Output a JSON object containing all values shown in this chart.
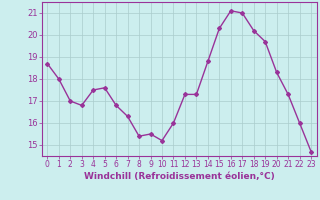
{
  "x": [
    0,
    1,
    2,
    3,
    4,
    5,
    6,
    7,
    8,
    9,
    10,
    11,
    12,
    13,
    14,
    15,
    16,
    17,
    18,
    19,
    20,
    21,
    22,
    23
  ],
  "y": [
    18.7,
    18.0,
    17.0,
    16.8,
    17.5,
    17.6,
    16.8,
    16.3,
    15.4,
    15.5,
    15.2,
    16.0,
    17.3,
    17.3,
    18.8,
    20.3,
    21.1,
    21.0,
    20.2,
    19.7,
    18.3,
    17.3,
    16.0,
    14.7
  ],
  "line_color": "#993399",
  "marker": "D",
  "marker_size": 2,
  "bg_color": "#cceeee",
  "grid_color": "#aacccc",
  "xlabel": "Windchill (Refroidissement éolien,°C)",
  "ylim": [
    14.5,
    21.5
  ],
  "yticks": [
    15,
    16,
    17,
    18,
    19,
    20,
    21
  ],
  "xticks": [
    0,
    1,
    2,
    3,
    4,
    5,
    6,
    7,
    8,
    9,
    10,
    11,
    12,
    13,
    14,
    15,
    16,
    17,
    18,
    19,
    20,
    21,
    22,
    23
  ],
  "axis_color": "#993399",
  "tick_label_color": "#993399",
  "xlabel_color": "#993399",
  "tick_fontsize": 5.5,
  "xlabel_fontsize": 6.5,
  "linewidth": 1.0
}
